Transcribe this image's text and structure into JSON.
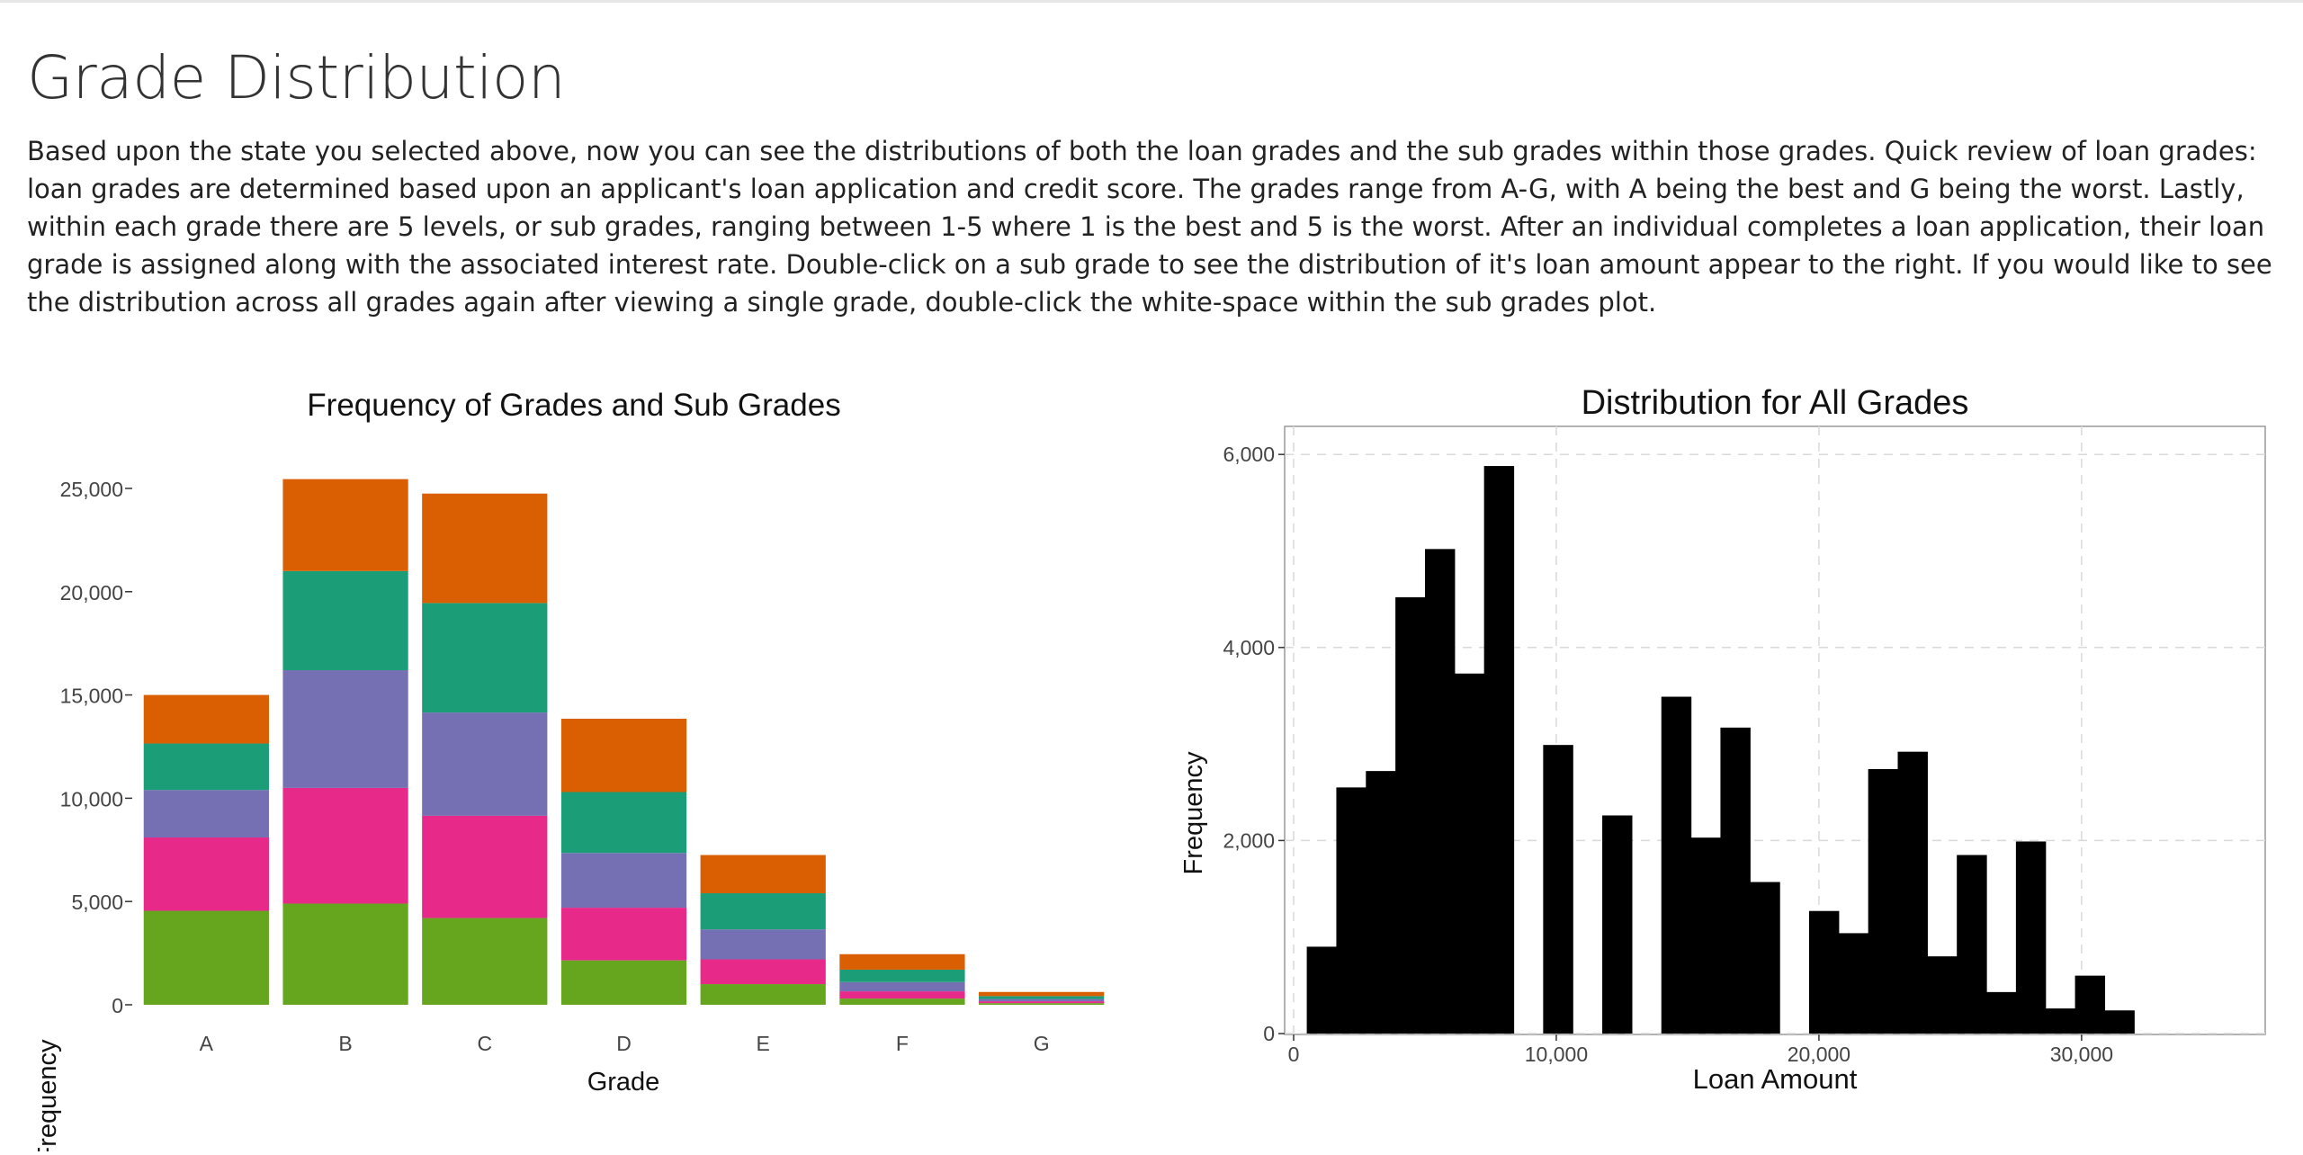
{
  "page": {
    "title": "Grade Distribution",
    "description": "Based upon the state you selected above, now you can see the distributions of both the loan grades and the sub grades within those grades. Quick review of loan grades: loan grades are determined based upon an applicant's loan application and credit score. The grades range from A-G, with A being the best and G being the worst. Lastly, within each grade there are 5 levels, or sub grades, ranging between 1-5 where 1 is the best and 5 is the worst. After an individual completes a loan application, their loan grade is assigned along with the associated interest rate. Double-click on a sub grade to see the distribution of it's loan amount appear to the right. If you would like to see the distribution across all grades again after viewing a single grade, double-click the white-space within the sub grades plot."
  },
  "chart_data": [
    {
      "type": "bar",
      "stacked": true,
      "title": "Frequency of Grades and Sub Grades",
      "xlabel": "Grade",
      "ylabel": "Frequency",
      "categories": [
        "A",
        "B",
        "C",
        "D",
        "E",
        "F",
        "G"
      ],
      "ylim": [
        0,
        26000
      ],
      "yticks": [
        0,
        5000,
        10000,
        15000,
        20000,
        25000
      ],
      "ytick_labels": [
        "0",
        "5,000",
        "10,000",
        "15,000",
        "20,000",
        "25,000"
      ],
      "grid": false,
      "legend": "none",
      "series": [
        {
          "color": "#66a61e",
          "values": [
            4550,
            4900,
            4200,
            2150,
            1000,
            300,
            80
          ]
        },
        {
          "color": "#e7298a",
          "values": [
            3550,
            5600,
            4950,
            2550,
            1200,
            350,
            90
          ]
        },
        {
          "color": "#7570b3",
          "values": [
            2300,
            5700,
            5000,
            2650,
            1450,
            450,
            110
          ]
        },
        {
          "color": "#1b9e77",
          "values": [
            2250,
            4800,
            5300,
            2950,
            1750,
            600,
            140
          ]
        },
        {
          "color": "#d95f02",
          "values": [
            2350,
            4450,
            5300,
            3550,
            1850,
            750,
            200
          ]
        }
      ]
    },
    {
      "type": "bar",
      "histogram": true,
      "title": "Distribution for All Grades",
      "xlabel": "Loan Amount",
      "ylabel": "Frequency",
      "xlim": [
        0,
        35000
      ],
      "ylim": [
        0,
        6300
      ],
      "xticks": [
        0,
        10000,
        20000,
        30000
      ],
      "xtick_labels": [
        "0",
        "10,000",
        "20,000",
        "30,000"
      ],
      "yticks": [
        0,
        2000,
        4000,
        6000
      ],
      "ytick_labels": [
        "0",
        "2,000",
        "4,000",
        "6,000"
      ],
      "grid": true,
      "bin_width": 1125,
      "bin_start": 500,
      "values": [
        900,
        2550,
        2720,
        4520,
        5020,
        3730,
        5880,
        0,
        2990,
        0,
        2260,
        0,
        3490,
        2030,
        3170,
        1570,
        0,
        1270,
        1040,
        2740,
        2920,
        800,
        1850,
        430,
        1990,
        260,
        600,
        240
      ],
      "color": "#000000"
    }
  ]
}
